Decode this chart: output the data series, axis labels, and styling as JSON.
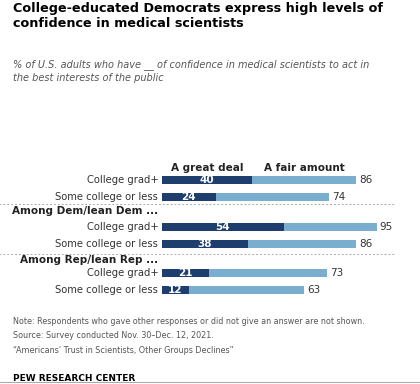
{
  "title": "College-educated Democrats express high levels of\nconfidence in medical scientists",
  "subtitle_plain": "% of U.S. adults who have __ of confidence in ",
  "subtitle_bold": "medical scientists",
  "subtitle_end": " to act in\nthe best interests of the public",
  "categories": [
    "College grad+",
    "Some college or less",
    "College grad+",
    "Some college or less",
    "College grad+",
    "Some college or less"
  ],
  "group_labels": [
    "Among Dem/lean Dem ...",
    "Among Rep/lean Rep ..."
  ],
  "great_deal": [
    40,
    24,
    54,
    38,
    21,
    12
  ],
  "fair_amount": [
    86,
    74,
    95,
    86,
    73,
    63
  ],
  "dark_blue": "#1e3f6e",
  "light_blue": "#7aaece",
  "note_line1": "Note: Respondents who gave other responses or did not give an answer are not shown.",
  "note_line2": "Source: Survey conducted Nov. 30–Dec. 12, 2021.",
  "note_line3": "“Americans’ Trust in Scientists, Other Groups Declines”",
  "source": "PEW RESEARCH CENTER",
  "col_label_great": "A great deal",
  "col_label_fair": "A fair amount"
}
